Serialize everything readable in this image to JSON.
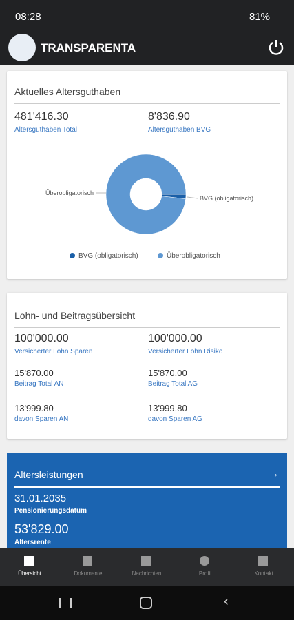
{
  "status": {
    "time": "08:28",
    "battery": "81%"
  },
  "header": {
    "title": "TRANSPARENTA"
  },
  "cards": [
    {
      "title": "Aktuelles Altersguthaben",
      "items": [
        {
          "value": "481'416.30",
          "label": "Altersguthaben Total"
        },
        {
          "value": "8'836.90",
          "label": "Altersguthaben BVG"
        }
      ]
    },
    {
      "title": "Lohn- und Beitragsübersicht",
      "items": [
        {
          "value": "100'000.00",
          "label": "Versicherter Lohn Sparen"
        },
        {
          "value": "100'000.00",
          "label": "Versicherter Lohn Risiko"
        },
        {
          "value": "15'870.00",
          "label": "Beitrag Total AN"
        },
        {
          "value": "15'870.00",
          "label": "Beitrag Total AG"
        },
        {
          "value": "13'999.80",
          "label": "davon Sparen AN"
        },
        {
          "value": "13'999.80",
          "label": "davon Sparen AG"
        }
      ]
    }
  ],
  "chart_data": {
    "type": "pie",
    "donut": true,
    "categories": [
      "BVG (obligatorisch)",
      "Überobligatorisch"
    ],
    "values": [
      8836.9,
      472579.4
    ],
    "colors": [
      "#1a5fa8",
      "#5e98d2"
    ]
  },
  "benefits": {
    "title": "Altersleistungen",
    "items": [
      {
        "value": "31.01.2035",
        "label": "Pensionierungsdatum"
      },
      {
        "value": "53'829.00",
        "label": "Altersrente"
      }
    ]
  },
  "nav": [
    "Übersicht",
    "Dokumente",
    "Nachrichten",
    "Profil",
    "Kontakt"
  ]
}
